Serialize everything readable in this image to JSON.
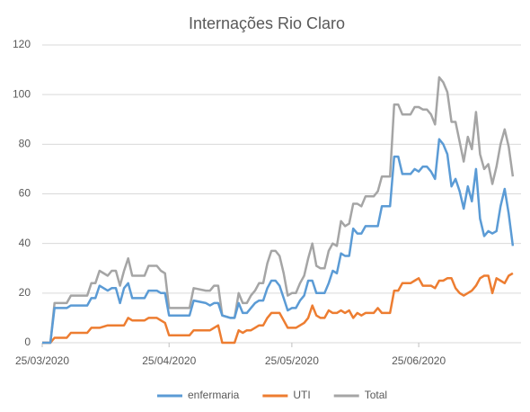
{
  "chart_data": {
    "type": "line",
    "title": "Internações Rio Claro",
    "x": [
      "25/03/2020",
      "27/03/2020",
      "28/03/2020",
      "31/03/2020",
      "01/04/2020",
      "05/04/2020",
      "06/04/2020",
      "07/04/2020",
      "08/04/2020",
      "10/04/2020",
      "11/04/2020",
      "12/04/2020",
      "13/04/2020",
      "14/04/2020",
      "15/04/2020",
      "16/04/2020",
      "19/04/2020",
      "20/04/2020",
      "22/04/2020",
      "23/04/2020",
      "24/04/2020",
      "25/04/2020",
      "30/04/2020",
      "01/05/2020",
      "04/05/2020",
      "05/05/2020",
      "06/05/2020",
      "07/05/2020",
      "08/05/2020",
      "10/05/2020",
      "11/05/2020",
      "12/05/2020",
      "13/05/2020",
      "14/05/2020",
      "15/05/2020",
      "16/05/2020",
      "17/05/2020",
      "18/05/2020",
      "19/05/2020",
      "20/05/2020",
      "21/05/2020",
      "22/05/2020",
      "23/05/2020",
      "24/05/2020",
      "25/05/2020",
      "26/05/2020",
      "27/05/2020",
      "28/05/2020",
      "29/05/2020",
      "30/05/2020",
      "31/05/2020",
      "01/06/2020",
      "02/06/2020",
      "03/06/2020",
      "04/06/2020",
      "05/06/2020",
      "06/06/2020",
      "07/06/2020",
      "08/06/2020",
      "09/06/2020",
      "10/06/2020",
      "11/06/2020",
      "12/06/2020",
      "13/06/2020",
      "14/06/2020",
      "15/06/2020",
      "16/06/2020",
      "17/06/2020",
      "18/06/2020",
      "19/06/2020",
      "20/06/2020",
      "21/06/2020",
      "22/06/2020",
      "23/06/2020",
      "24/06/2020",
      "25/06/2020",
      "26/06/2020",
      "27/06/2020",
      "28/06/2020",
      "29/06/2020",
      "30/06/2020",
      "01/07/2020",
      "02/07/2020",
      "03/07/2020",
      "04/07/2020",
      "05/07/2020",
      "06/07/2020",
      "07/07/2020",
      "08/07/2020",
      "09/07/2020",
      "10/07/2020",
      "11/07/2020",
      "12/07/2020",
      "13/07/2020",
      "14/07/2020",
      "15/07/2020",
      "16/07/2020",
      "17/07/2020",
      "18/07/2020"
    ],
    "series": [
      {
        "name": "enfermaria",
        "color": "#5b9bd5",
        "values": [
          0,
          0,
          14,
          14,
          15,
          15,
          18,
          18,
          23,
          21,
          22,
          22,
          16,
          22,
          24,
          18,
          18,
          21,
          21,
          20,
          20,
          11,
          11,
          17,
          16,
          15,
          16,
          16,
          11,
          10,
          10,
          16,
          12,
          12,
          14,
          16,
          17,
          17,
          22,
          25,
          25,
          23,
          18,
          13,
          14,
          14,
          17,
          19,
          25,
          25,
          20,
          20,
          20,
          24,
          29,
          28,
          36,
          35,
          35,
          46,
          44,
          44,
          47,
          47,
          47,
          47,
          55,
          55,
          55,
          75,
          75,
          68,
          68,
          68,
          70,
          69,
          71,
          71,
          69,
          66,
          82,
          80,
          76,
          63,
          66,
          61,
          54,
          63,
          57,
          70,
          50,
          43,
          45,
          44,
          45,
          55,
          62,
          52,
          39
        ]
      },
      {
        "name": "UTI",
        "color": "#ed7d31",
        "values": [
          0,
          0,
          2,
          2,
          4,
          4,
          6,
          6,
          6,
          7,
          7,
          7,
          7,
          7,
          10,
          9,
          9,
          10,
          10,
          9,
          8,
          3,
          3,
          5,
          5,
          5,
          6,
          7,
          0,
          0,
          0,
          5,
          4,
          5,
          5,
          6,
          7,
          7,
          10,
          12,
          12,
          12,
          9,
          6,
          6,
          6,
          7,
          8,
          10,
          15,
          11,
          10,
          10,
          13,
          12,
          12,
          13,
          12,
          13,
          10,
          12,
          11,
          12,
          12,
          12,
          14,
          12,
          12,
          12,
          21,
          21,
          24,
          24,
          24,
          25,
          26,
          23,
          23,
          23,
          22,
          25,
          25,
          26,
          26,
          22,
          20,
          19,
          20,
          21,
          23,
          26,
          27,
          27,
          20,
          26,
          25,
          24,
          27,
          28
        ]
      },
      {
        "name": "Total",
        "color": "#a5a5a5",
        "values": [
          0,
          0,
          16,
          16,
          19,
          19,
          24,
          24,
          29,
          27,
          29,
          29,
          23,
          29,
          34,
          27,
          27,
          31,
          31,
          29,
          28,
          14,
          14,
          22,
          21,
          21,
          23,
          23,
          11,
          10,
          10,
          20,
          16,
          16,
          19,
          21,
          24,
          24,
          32,
          37,
          37,
          35,
          28,
          19,
          20,
          20,
          24,
          27,
          34,
          40,
          31,
          30,
          30,
          37,
          40,
          39,
          49,
          47,
          48,
          56,
          56,
          55,
          59,
          59,
          59,
          61,
          67,
          67,
          67,
          96,
          96,
          92,
          92,
          92,
          95,
          95,
          94,
          94,
          92,
          88,
          107,
          105,
          101,
          89,
          89,
          81,
          73,
          83,
          78,
          93,
          76,
          70,
          72,
          64,
          71,
          80,
          86,
          79,
          67
        ]
      }
    ],
    "xlim": [
      "25/03/2020",
      "20/07/2020"
    ],
    "xticks": [
      "25/03/2020",
      "25/04/2020",
      "25/05/2020",
      "25/06/2020"
    ],
    "ylim": [
      0,
      120
    ],
    "yticks": [
      0,
      20,
      40,
      60,
      80,
      100,
      120
    ],
    "grid": true,
    "legend": "bottom"
  }
}
